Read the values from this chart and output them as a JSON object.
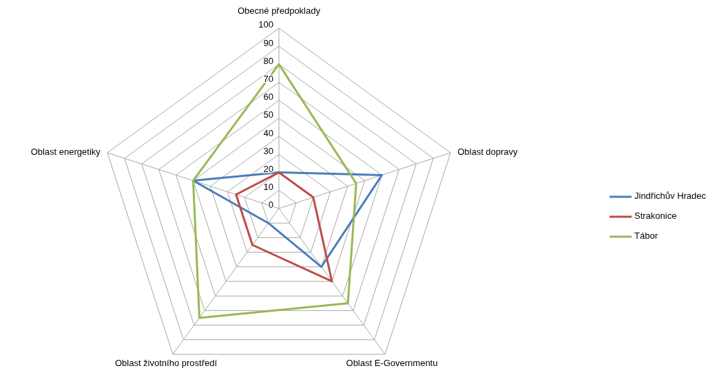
{
  "chart_data": {
    "type": "radar",
    "categories": [
      "Obecné předpoklady",
      "Oblast dopravy",
      "Oblast E-Governmentu",
      "Oblast životního prostředí",
      "Oblast energetiky"
    ],
    "series": [
      {
        "name": "Jindřichův Hradec",
        "color": "#4a7ebb",
        "values": [
          20,
          60,
          40,
          10,
          50
        ]
      },
      {
        "name": "Strakonice",
        "color": "#be4b48",
        "values": [
          20,
          20,
          50,
          25,
          25
        ]
      },
      {
        "name": "Tábor",
        "color": "#98b954",
        "values": [
          80,
          45,
          65,
          75,
          50
        ]
      }
    ],
    "ylim": [
      0,
      100
    ],
    "yticks": [
      0,
      10,
      20,
      30,
      40,
      50,
      60,
      70,
      80,
      90,
      100
    ],
    "grid": true,
    "legend": "right",
    "marker": "none"
  }
}
